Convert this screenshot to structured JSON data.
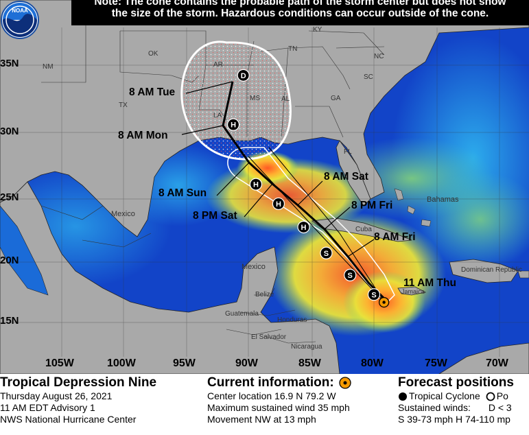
{
  "note": {
    "line1": "Note: The cone contains the probable path of the storm center but does not show",
    "line2": "the size of the storm. Hazardous conditions can occur outside of the cone."
  },
  "logo": {
    "text": "NOAA",
    "icon": "noaa-logo-icon"
  },
  "latitudes": [
    "35N",
    "30N",
    "25N",
    "20N",
    "15N"
  ],
  "longitudes": [
    "105W",
    "100W",
    "95W",
    "90W",
    "85W",
    "80W",
    "75W",
    "70W"
  ],
  "states": [
    "NM",
    "OK",
    "AR",
    "TN",
    "KY",
    "NC",
    "SC",
    "TX",
    "MS",
    "AL",
    "GA",
    "LA",
    "FL"
  ],
  "countries": [
    "Mexico",
    "Bahamas",
    "Cuba",
    "Mexico",
    "Belize",
    "Guatemala",
    "Honduras",
    "El Salvador",
    "Nicaragua",
    "Jamaica",
    "Dominican Republic"
  ],
  "track_points": [
    {
      "label": "11 AM Thu",
      "symbol": "current",
      "lat": 16.9,
      "lon": -79.2
    },
    {
      "label": "",
      "symbol": "S",
      "lat": 17.5,
      "lon": -80.0
    },
    {
      "label": "8 AM Fri",
      "symbol": "S",
      "lat": 19.0,
      "lon": -81.9
    },
    {
      "label": "8 PM Fri",
      "symbol": "S",
      "lat": 20.7,
      "lon": -83.8
    },
    {
      "label": "8 AM Sat",
      "symbol": "H",
      "lat": 22.7,
      "lon": -85.6
    },
    {
      "label": "8 PM Sat",
      "symbol": "H",
      "lat": 24.5,
      "lon": -87.6
    },
    {
      "label": "8 AM Sun",
      "symbol": "H",
      "lat": 26.0,
      "lon": -89.4
    },
    {
      "label": "8 AM Mon",
      "symbol": "H",
      "lat": 30.6,
      "lon": -91.2
    },
    {
      "label": "8 AM Tue",
      "symbol": "D",
      "lat": 34.4,
      "lon": -90.4
    }
  ],
  "legend": {
    "title": "Tropical Depression Nine",
    "date": "Thursday August 26, 2021",
    "advisory": "11 AM EDT Advisory 1",
    "center": "NWS National Hurricane Center"
  },
  "current": {
    "title": "Current information:",
    "location": "Center location 16.9 N 79.2 W",
    "wind": "Maximum sustained wind 35 mph",
    "movement": "Movement NW at 13 mph"
  },
  "forecast": {
    "title": "Forecast positions",
    "cyclone": "Tropical Cyclone",
    "post": "Po",
    "sustained": "Sustained winds:",
    "d_item": "D < 3",
    "ranges": "S 39-73 mph  H 74-110 mp"
  },
  "colors": {
    "land": "#a9a9a9",
    "ocean": "#1244c8",
    "warm": "#ffcc33",
    "hot": "#e8402a",
    "current_marker": "#f59a00"
  }
}
